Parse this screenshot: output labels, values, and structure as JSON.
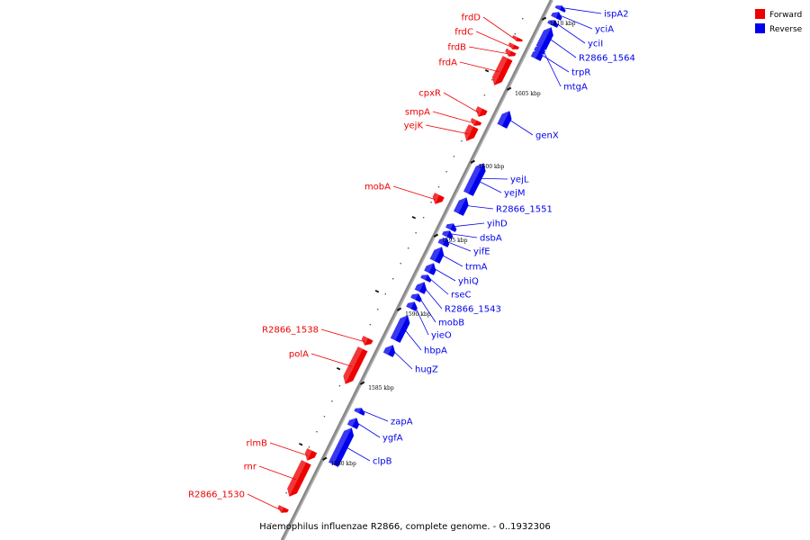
{
  "caption": "Haemophilus influenzae R2866, complete genome. - 0..1932306",
  "legend": [
    {
      "label": "Forward",
      "color": "#ee0000"
    },
    {
      "label": "Reverse",
      "color": "#0000ee"
    }
  ],
  "colors": {
    "forward": "#ee0000",
    "reverse": "#0000ee",
    "backbone": "#888888"
  },
  "ticks": [
    {
      "label": "1580 kbp"
    },
    {
      "label": "1585 kbp"
    },
    {
      "label": "1590 kbp"
    },
    {
      "label": "1595 kbp"
    },
    {
      "label": "1600 kbp"
    },
    {
      "label": "1605 kbp"
    },
    {
      "label": "1610 kbp"
    }
  ],
  "forward_genes": [
    {
      "name": "frdD"
    },
    {
      "name": "frdC"
    },
    {
      "name": "frdB"
    },
    {
      "name": "frdA"
    },
    {
      "name": "cpxR"
    },
    {
      "name": "smpA"
    },
    {
      "name": "yejK"
    },
    {
      "name": "mobA"
    },
    {
      "name": "R2866_1538"
    },
    {
      "name": "polA"
    },
    {
      "name": "rlmB"
    },
    {
      "name": "rnr"
    },
    {
      "name": "R2866_1530"
    }
  ],
  "reverse_genes": [
    {
      "name": "ispA2"
    },
    {
      "name": "yciA"
    },
    {
      "name": "yciI"
    },
    {
      "name": "R2866_1564"
    },
    {
      "name": "trpR"
    },
    {
      "name": "mtgA"
    },
    {
      "name": "genX"
    },
    {
      "name": "yejL"
    },
    {
      "name": "yejM"
    },
    {
      "name": "R2866_1551"
    },
    {
      "name": "yihD"
    },
    {
      "name": "dsbA"
    },
    {
      "name": "yifE"
    },
    {
      "name": "trmA"
    },
    {
      "name": "yhiQ"
    },
    {
      "name": "rseC"
    },
    {
      "name": "R2866_1543"
    },
    {
      "name": "mobB"
    },
    {
      "name": "yieO"
    },
    {
      "name": "hbpA"
    },
    {
      "name": "hugZ"
    },
    {
      "name": "zapA"
    },
    {
      "name": "ygfA"
    },
    {
      "name": "clpB"
    }
  ]
}
